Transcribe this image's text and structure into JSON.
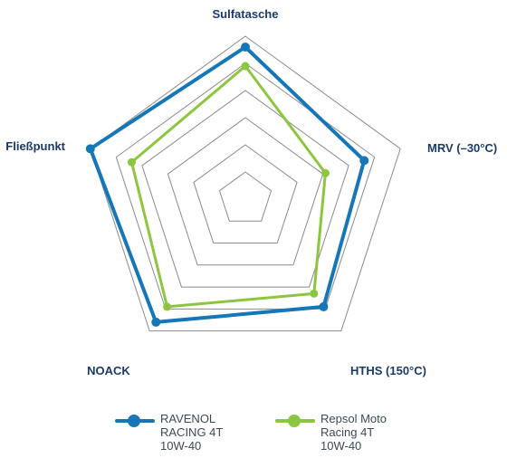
{
  "chart_data": {
    "type": "radar",
    "axes": [
      "Sulfatasche",
      "MRV (–30°C)",
      "HTHS (150°C)",
      "NOACK",
      "Fließpunkt"
    ],
    "rings": 6,
    "range": [
      0,
      6
    ],
    "grid": true,
    "legend_position": "bottom",
    "series": [
      {
        "name": "RAVENOL RACING 4T 10W-40",
        "color": "#1577b7",
        "values": [
          5.6,
          4.6,
          4.9,
          5.6,
          6.0
        ]
      },
      {
        "name": "Repsol Moto Racing 4T 10W-40",
        "color": "#8cc63f",
        "values": [
          4.9,
          3.1,
          4.3,
          4.9,
          4.4
        ]
      }
    ]
  },
  "legend": {
    "items": [
      {
        "lines": [
          "RAVENOL",
          "RACING 4T",
          "10W-40"
        ]
      },
      {
        "lines": [
          "Repsol Moto",
          "Racing 4T",
          "10W-40"
        ]
      }
    ]
  }
}
